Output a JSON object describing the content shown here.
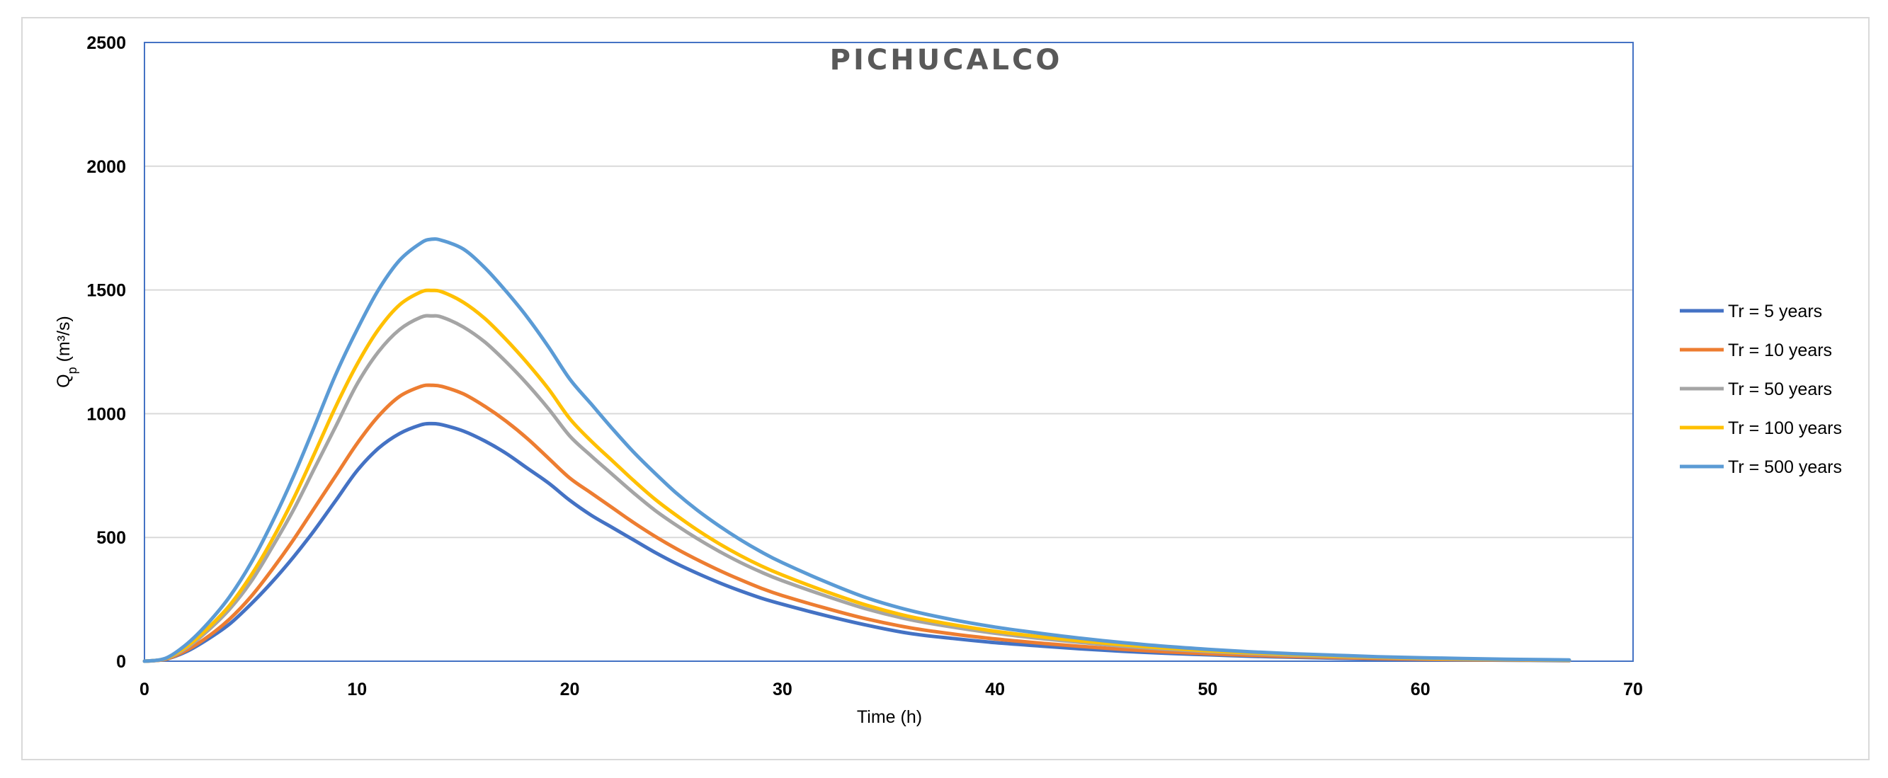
{
  "chart_data": {
    "type": "line",
    "title": "PICHUCALCO",
    "xlabel": "Time (h)",
    "ylabel_main": "Q",
    "ylabel_sub": "p",
    "ylabel_unit": " (m³/s)",
    "xlim": [
      0,
      70
    ],
    "ylim": [
      0,
      2500
    ],
    "x_ticks": [
      "0",
      "10",
      "20",
      "30",
      "40",
      "50",
      "60",
      "70"
    ],
    "y_ticks": [
      "0",
      "500",
      "1000",
      "1500",
      "2000",
      "2500"
    ],
    "grid": "horizontal",
    "legend_position": "right",
    "x": [
      0,
      1,
      2,
      3,
      4,
      5,
      6,
      7,
      8,
      9,
      10,
      11,
      12,
      13,
      13.5,
      14,
      15,
      16,
      17,
      18,
      19,
      20,
      21,
      22,
      23,
      24,
      25,
      26,
      27,
      28,
      29,
      30,
      32,
      34,
      36,
      38,
      40,
      42,
      44,
      46,
      48,
      50,
      52,
      54,
      56,
      58,
      60,
      62,
      64,
      66,
      67
    ],
    "series": [
      {
        "name": "Tr = 5 years",
        "color": "#4472c4",
        "values": [
          0,
          8,
          40,
          90,
          150,
          230,
          320,
          420,
          530,
          650,
          770,
          860,
          920,
          955,
          960,
          955,
          930,
          890,
          840,
          780,
          720,
          650,
          590,
          540,
          490,
          440,
          395,
          355,
          318,
          285,
          255,
          230,
          185,
          145,
          112,
          92,
          75,
          62,
          50,
          40,
          32,
          26,
          20,
          16,
          12,
          9,
          7,
          5,
          4,
          3,
          2
        ]
      },
      {
        "name": "Tr = 10 years",
        "color": "#ed7d31",
        "values": [
          0,
          8,
          45,
          100,
          170,
          260,
          370,
          490,
          620,
          750,
          880,
          990,
          1070,
          1110,
          1115,
          1110,
          1080,
          1030,
          970,
          900,
          820,
          740,
          680,
          620,
          560,
          505,
          455,
          410,
          368,
          330,
          295,
          265,
          215,
          170,
          135,
          110,
          90,
          74,
          60,
          48,
          38,
          30,
          24,
          19,
          15,
          11,
          8,
          6,
          5,
          4,
          3
        ]
      },
      {
        "name": "Tr = 50 years",
        "color": "#a5a5a5",
        "values": [
          0,
          10,
          55,
          125,
          210,
          320,
          460,
          610,
          780,
          950,
          1120,
          1250,
          1340,
          1390,
          1395,
          1390,
          1350,
          1290,
          1210,
          1120,
          1020,
          910,
          830,
          755,
          680,
          610,
          550,
          495,
          445,
          400,
          360,
          325,
          265,
          210,
          168,
          138,
          113,
          93,
          76,
          61,
          49,
          39,
          31,
          24,
          19,
          15,
          11,
          8,
          6,
          5,
          4
        ]
      },
      {
        "name": "Tr = 100 years",
        "color": "#ffc000",
        "values": [
          0,
          11,
          60,
          135,
          225,
          345,
          490,
          655,
          840,
          1030,
          1200,
          1340,
          1440,
          1492,
          1498,
          1492,
          1450,
          1385,
          1300,
          1205,
          1100,
          980,
          890,
          810,
          730,
          655,
          590,
          530,
          476,
          428,
          385,
          348,
          283,
          225,
          180,
          148,
          121,
          100,
          82,
          66,
          53,
          42,
          34,
          27,
          21,
          16,
          12,
          9,
          7,
          5,
          4
        ]
      },
      {
        "name": "Tr = 500 years",
        "color": "#5b9bd5",
        "values": [
          0,
          12,
          70,
          155,
          260,
          395,
          560,
          745,
          950,
          1160,
          1340,
          1500,
          1620,
          1690,
          1705,
          1700,
          1665,
          1590,
          1495,
          1390,
          1270,
          1140,
          1040,
          940,
          845,
          760,
          680,
          610,
          548,
          492,
          442,
          398,
          322,
          255,
          205,
          168,
          138,
          114,
          93,
          75,
          60,
          48,
          38,
          30,
          24,
          18,
          14,
          11,
          8,
          6,
          5
        ]
      }
    ]
  }
}
